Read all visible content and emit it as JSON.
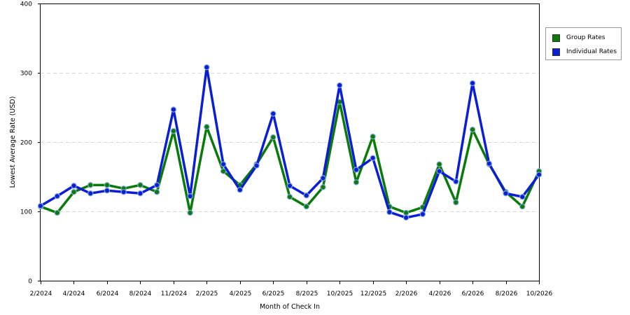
{
  "chart_data": {
    "type": "line",
    "title": "",
    "xlabel": "Month of Check In",
    "ylabel": "Lowest Average Rate (USD)",
    "ylim": [
      0,
      400
    ],
    "yticks": [
      "0",
      "100",
      "200",
      "300",
      "400"
    ],
    "xticks": [
      "2/2024",
      "4/2024",
      "6/2024",
      "8/2024",
      "11/2024",
      "2/2025",
      "4/2025",
      "6/2025",
      "8/2025",
      "10/2025",
      "12/2025",
      "2/2026",
      "4/2026",
      "6/2026",
      "8/2026",
      "10/2026"
    ],
    "grid": true,
    "legend_position": "top-right",
    "series": [
      {
        "name": "Group Rates",
        "color": "#0a7a0a",
        "values": [
          107,
          98,
          128,
          138,
          138,
          133,
          138,
          128,
          216,
          98,
          222,
          158,
          138,
          168,
          207,
          121,
          107,
          135,
          258,
          142,
          208,
          107,
          98,
          106,
          168,
          113,
          218,
          168,
          128,
          107,
          158
        ]
      },
      {
        "name": "Individual Rates",
        "color": "#0a1ed4",
        "values": [
          108,
          122,
          137,
          126,
          130,
          128,
          126,
          138,
          247,
          122,
          308,
          168,
          131,
          166,
          241,
          137,
          123,
          148,
          282,
          160,
          177,
          99,
          91,
          96,
          158,
          143,
          285,
          169,
          126,
          121,
          153
        ]
      }
    ]
  }
}
